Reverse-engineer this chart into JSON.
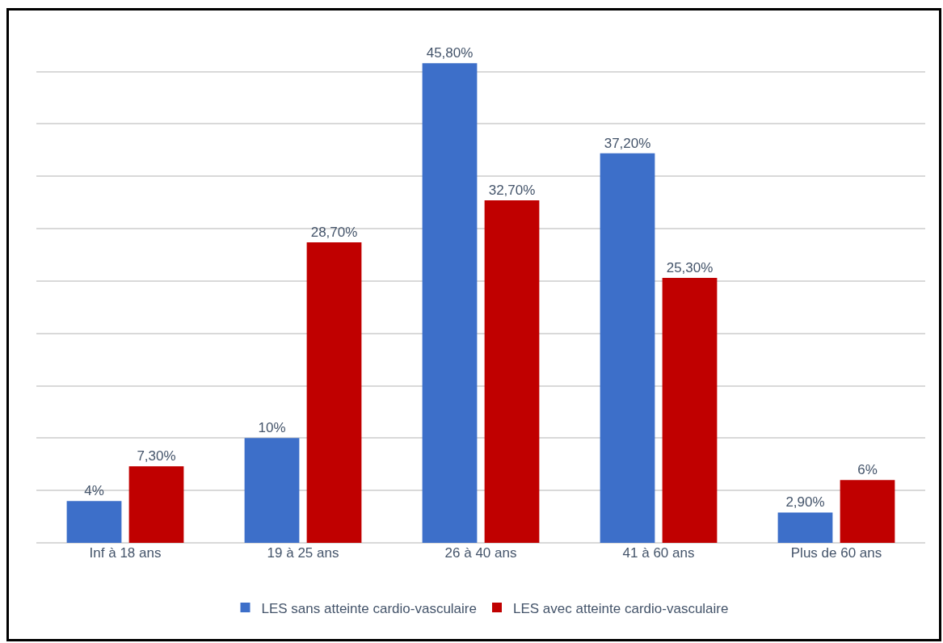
{
  "chart_data": {
    "type": "bar",
    "categories": [
      "Inf à 18 ans",
      "19 à 25 ans",
      "26 à 40 ans",
      "41 à 60 ans",
      "Plus de 60 ans"
    ],
    "series": [
      {
        "name": "LES sans atteinte cardio-vasculaire",
        "color": "#3d6fc9",
        "values": [
          4,
          10,
          45.8,
          37.2,
          2.9
        ],
        "value_labels": [
          "4%",
          "10%",
          "45,80%",
          "37,20%",
          "2,90%"
        ]
      },
      {
        "name": "LES avec atteinte cardio-vasculaire",
        "color": "#c00000",
        "values": [
          7.3,
          28.7,
          32.7,
          25.3,
          6
        ],
        "value_labels": [
          "7,30%",
          "28,70%",
          "32,70%",
          "25,30%",
          "6%"
        ]
      }
    ],
    "grid": "y",
    "legend": "bottom",
    "tick_labels": "x"
  }
}
